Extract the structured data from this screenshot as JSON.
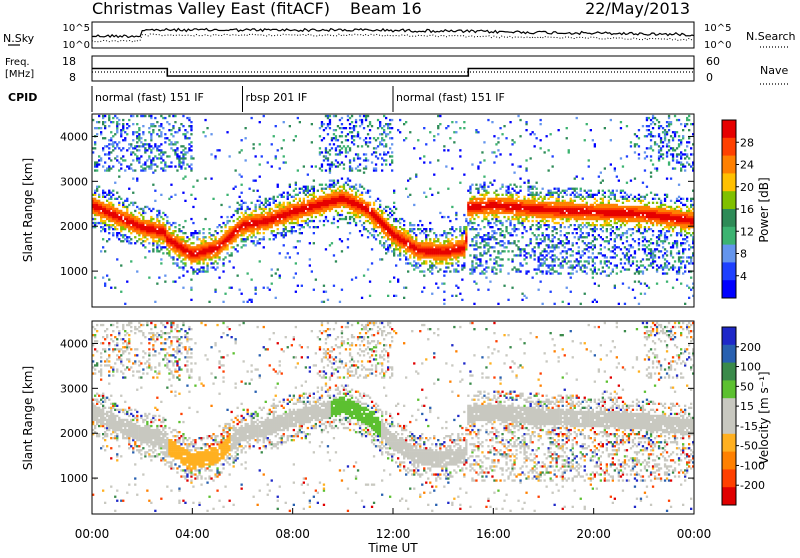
{
  "header": {
    "station": "Christmas Valley East (fitACF)",
    "beam": "Beam 16",
    "date": "22/May/2013"
  },
  "panels": {
    "nsky": {
      "left_label": "N.Sky",
      "ticks_left": [
        "10^5",
        "10^0"
      ],
      "right_label": "N.Search",
      "ticks_right": [
        "10^5",
        "10^0"
      ]
    },
    "freq": {
      "left_label_1": "Freq.",
      "left_label_2": "[MHz]",
      "ticks_left": [
        "18",
        "8"
      ],
      "right_label": "Nave",
      "ticks_right": [
        "60",
        "0"
      ],
      "freq_segments": [
        {
          "start": 0,
          "end": 3,
          "value": "13"
        },
        {
          "start": 3,
          "end": 15,
          "value": "10"
        },
        {
          "start": 15,
          "end": 24,
          "value": "13"
        }
      ]
    },
    "cpid": {
      "label": "CPID",
      "segments": [
        {
          "start": 0,
          "end": 6,
          "label": "normal (fast) 151 IF"
        },
        {
          "start": 6,
          "end": 12,
          "label": "rbsp 201 IF"
        },
        {
          "start": 12,
          "end": 24,
          "label": "normal (fast) 151 IF"
        }
      ]
    }
  },
  "chart_data": [
    {
      "type": "heatmap",
      "name": "power",
      "ylabel": "Slant Range [km]",
      "y_ticks": [
        "1000",
        "2000",
        "3000",
        "4000"
      ],
      "ylim": [
        200,
        4500
      ],
      "colorbar": {
        "label": "Power [dB]",
        "ticks": [
          "28",
          "24",
          "20",
          "16",
          "12",
          "8",
          "4"
        ],
        "colors": [
          "#e60000",
          "#ff4000",
          "#ff8000",
          "#ffc000",
          "#80c000",
          "#2e8b57",
          "#3cb371",
          "#6495ed",
          "#1e40ff",
          "#0000ff"
        ]
      },
      "main_band": [
        {
          "t": 0.0,
          "r": 2450
        },
        {
          "t": 1.0,
          "r": 2200
        },
        {
          "t": 2.0,
          "r": 1950
        },
        {
          "t": 2.9,
          "r": 1850
        },
        {
          "t": 3.0,
          "r": 1700
        },
        {
          "t": 4.0,
          "r": 1350
        },
        {
          "t": 5.0,
          "r": 1500
        },
        {
          "t": 6.0,
          "r": 2000
        },
        {
          "t": 7.0,
          "r": 2100
        },
        {
          "t": 8.0,
          "r": 2300
        },
        {
          "t": 9.0,
          "r": 2450
        },
        {
          "t": 10.0,
          "r": 2600
        },
        {
          "t": 11.0,
          "r": 2350
        },
        {
          "t": 12.0,
          "r": 1800
        },
        {
          "t": 13.0,
          "r": 1450
        },
        {
          "t": 14.0,
          "r": 1400
        },
        {
          "t": 14.9,
          "r": 1500
        },
        {
          "t": 15.0,
          "r": 2400
        },
        {
          "t": 16.0,
          "r": 2450
        },
        {
          "t": 18.0,
          "r": 2350
        },
        {
          "t": 20.0,
          "r": 2300
        },
        {
          "t": 22.0,
          "r": 2250
        },
        {
          "t": 24.0,
          "r": 2100
        }
      ]
    },
    {
      "type": "heatmap",
      "name": "velocity",
      "xlabel": "Time UT",
      "ylabel": "Slant Range [km]",
      "x_ticks": [
        "00:00",
        "04:00",
        "08:00",
        "12:00",
        "16:00",
        "20:00",
        "00:00"
      ],
      "y_ticks": [
        "1000",
        "2000",
        "3000",
        "4000"
      ],
      "ylim": [
        200,
        4500
      ],
      "colorbar": {
        "label": "Velocity [m s⁻¹]",
        "ticks": [
          "200",
          "100",
          "50",
          "15",
          "-15",
          "-50",
          "-100",
          "-200"
        ],
        "colors": [
          "#1e28c8",
          "#2860b0",
          "#3a8a4a",
          "#5cc030",
          "#c8c8c0",
          "#c8c8c0",
          "#ffb020",
          "#ff8000",
          "#ff4000",
          "#e00000"
        ]
      }
    }
  ]
}
